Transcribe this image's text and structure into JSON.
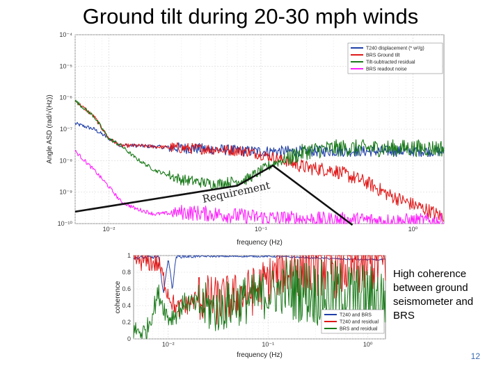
{
  "slide": {
    "title": "Ground tilt during 20-30 mph winds",
    "note": "High coherence between ground seismometer and BRS",
    "page_number": "12"
  },
  "chart_data": [
    {
      "type": "line",
      "ylabel": "Angle ASD (rad/√(Hz))",
      "xlabel": "frequency (Hz)",
      "xscale": "log",
      "yscale": "log",
      "xlim": [
        0.006,
        1.6
      ],
      "ylim": [
        1e-10,
        0.0001
      ],
      "xticks": [
        {
          "value": 0.01,
          "label": "10⁻²"
        },
        {
          "value": 0.1,
          "label": "10⁻¹"
        },
        {
          "value": 1,
          "label": "10⁰"
        }
      ],
      "yticks": [
        {
          "value": 0.0001,
          "label": "10⁻⁴"
        },
        {
          "value": 1e-05,
          "label": "10⁻⁵"
        },
        {
          "value": 1e-06,
          "label": "10⁻⁶"
        },
        {
          "value": 1e-07,
          "label": "10⁻⁷"
        },
        {
          "value": 1e-08,
          "label": "10⁻⁸"
        },
        {
          "value": 1e-09,
          "label": "10⁻⁹"
        },
        {
          "value": 1e-10,
          "label": "10⁻¹⁰"
        }
      ],
      "grid": true,
      "legend_position": "top-right",
      "series": [
        {
          "name": "T240 displacement (* w²/g)",
          "color": "#1f3fa8",
          "x": [
            0.006,
            0.008,
            0.01,
            0.012,
            0.015,
            0.02,
            0.03,
            0.05,
            0.08
          ],
          "y": [
            1.5e-07,
            1e-07,
            5e-08,
            3e-08,
            3e-08,
            2.8e-08,
            2.5e-08,
            2.3e-08,
            2e-08
          ]
        },
        {
          "name": "BRS Ground tilt",
          "color": "#e01818",
          "x": [
            0.006,
            0.008,
            0.01,
            0.012,
            0.015,
            0.02,
            0.03,
            0.05,
            0.08,
            0.12,
            0.2,
            0.3,
            0.5,
            0.7,
            1.0,
            1.3,
            1.5
          ],
          "y": [
            8e-07,
            2.5e-07,
            5e-08,
            3e-08,
            3e-08,
            2.8e-08,
            2.5e-08,
            2.3e-08,
            2e-08,
            1.3e-08,
            6e-09,
            5e-09,
            2e-09,
            8e-10,
            4e-10,
            2.5e-10,
            1.8e-10
          ]
        },
        {
          "name": "Tilt-subtracted residual",
          "color": "#1a7a1a",
          "x": [
            0.006,
            0.008,
            0.01,
            0.012,
            0.015,
            0.02,
            0.03,
            0.05,
            0.08,
            0.12,
            0.2,
            0.3,
            0.5,
            0.7,
            1.0,
            1.3,
            1.5
          ],
          "y": [
            8e-07,
            2.5e-07,
            5e-08,
            3e-08,
            1.2e-08,
            5e-09,
            2.5e-09,
            1.8e-09,
            2.5e-09,
            8e-09,
            2e-08,
            2.5e-08,
            2.5e-08,
            2.5e-08,
            2.5e-08,
            2.5e-08,
            2.5e-08
          ]
        },
        {
          "name": "BRS readout noise",
          "color": "#ff22ff",
          "x": [
            0.006,
            0.008,
            0.01,
            0.012,
            0.015,
            0.02,
            0.03,
            0.05,
            0.08,
            0.12,
            0.2,
            0.3,
            0.5,
            0.7,
            1.0,
            1.3,
            1.5
          ],
          "y": [
            2e-08,
            5e-09,
            1.5e-09,
            5e-10,
            3e-10,
            2e-10,
            2.3e-10,
            2e-10,
            1.7e-10,
            1.5e-10,
            1.4e-10,
            1.3e-10,
            1.3e-10,
            1.2e-10,
            1.2e-10,
            1.2e-10,
            1.2e-10
          ]
        }
      ],
      "annotations": [
        {
          "text": "Requirement",
          "line": {
            "x": [
              0.006,
              0.07,
              0.12,
              0.4
            ],
            "y": [
              2.4e-10,
              1.6e-09,
              7e-09,
              6e-11
            ]
          }
        }
      ]
    },
    {
      "type": "line",
      "ylabel": "coherence",
      "xlabel": "frequency (Hz)",
      "xscale": "log",
      "xlim": [
        0.0045,
        1.5
      ],
      "ylim": [
        0,
        1
      ],
      "xticks": [
        {
          "value": 0.01,
          "label": "10⁻²"
        },
        {
          "value": 0.1,
          "label": "10⁻¹"
        },
        {
          "value": 1,
          "label": "10⁰"
        }
      ],
      "yticks": [
        {
          "value": 0,
          "label": "0"
        },
        {
          "value": 0.2,
          "label": "0.2"
        },
        {
          "value": 0.4,
          "label": "0.4"
        },
        {
          "value": 0.6,
          "label": "0.6"
        },
        {
          "value": 0.8,
          "label": "0.8"
        },
        {
          "value": 1,
          "label": "1"
        }
      ],
      "grid": true,
      "legend_position": "bottom-right",
      "series": [
        {
          "name": "T240 and BRS",
          "color": "#1f3fa8",
          "x": [
            0.0045,
            0.006,
            0.008,
            0.009,
            0.01,
            0.011,
            0.012,
            0.015,
            0.02,
            0.05,
            0.1,
            0.2,
            0.3,
            0.5,
            1.0,
            1.5
          ],
          "y": [
            0.97,
            0.98,
            0.98,
            0.55,
            0.98,
            0.6,
            0.99,
            0.99,
            0.99,
            0.99,
            0.99,
            0.98,
            0.97,
            0.96,
            0.95,
            0.95
          ]
        },
        {
          "name": "T240 and residual",
          "color": "#e01818",
          "x": [
            0.0045,
            0.006,
            0.008,
            0.01,
            0.012,
            0.015,
            0.02,
            0.03,
            0.05,
            0.08,
            0.1,
            0.15,
            0.2,
            0.3,
            0.5,
            1.0,
            1.5
          ],
          "y": [
            0.95,
            0.93,
            0.9,
            0.55,
            0.35,
            0.4,
            0.5,
            0.45,
            0.5,
            0.6,
            0.7,
            0.85,
            0.9,
            0.9,
            0.88,
            0.9,
            0.9
          ]
        },
        {
          "name": "BRS and residual",
          "color": "#1a7a1a",
          "x": [
            0.0045,
            0.006,
            0.008,
            0.01,
            0.012,
            0.015,
            0.02,
            0.03,
            0.05,
            0.08,
            0.1,
            0.15,
            0.2,
            0.3,
            0.5,
            1.0,
            1.5
          ],
          "y": [
            0.1,
            0.08,
            0.55,
            0.25,
            0.3,
            0.45,
            0.4,
            0.35,
            0.45,
            0.5,
            0.55,
            0.6,
            0.6,
            0.55,
            0.55,
            0.5,
            0.5
          ]
        }
      ]
    }
  ]
}
